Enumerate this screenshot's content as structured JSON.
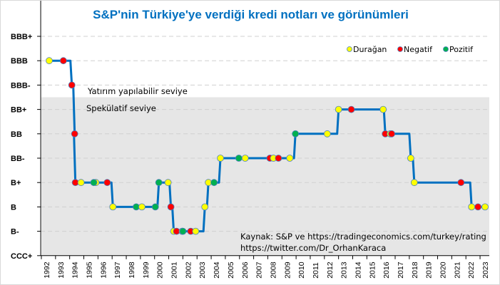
{
  "chart_data": {
    "type": "line",
    "title": "S&P'nin Türkiye'ye verdiği kredi notları ve görünümleri",
    "ratings": [
      "CCC+",
      "B-",
      "B",
      "B+",
      "BB-",
      "BB",
      "BB+",
      "BBB-",
      "BBB",
      "BBB+"
    ],
    "x_ticks": [
      1992,
      1993,
      1994,
      1995,
      1996,
      1997,
      1998,
      1999,
      2000,
      2001,
      2002,
      2003,
      2004,
      2005,
      2006,
      2007,
      2008,
      2009,
      2010,
      2011,
      2012,
      2013,
      2014,
      2015,
      2016,
      2017,
      2018,
      2019,
      2020,
      2021,
      2022,
      2023
    ],
    "xlim": [
      1991.6,
      2023.3
    ],
    "grid": true,
    "legend": {
      "position": "top-right",
      "entries": [
        {
          "key": "Y",
          "label": "Durağan"
        },
        {
          "key": "N",
          "label": "Negatif"
        },
        {
          "key": "G",
          "label": "Pozitif"
        }
      ]
    },
    "colors": {
      "line": "#0070c0",
      "Y": "#ffff00",
      "N": "#ff0000",
      "G": "#00b050",
      "shade": "#e6e6e6"
    },
    "annotations": {
      "investment": "Yatırım yapılabilir seviye",
      "speculative": "Spekülatif seviye",
      "source": "Kaynak: S&P ve https://tradingeconomics.com/turkey/rating",
      "twitter": "https://twitter.com/Dr_OrhanKaraca"
    },
    "points": [
      {
        "year": 1992.2,
        "rating": "BBB",
        "outlook": "Y"
      },
      {
        "year": 1993.2,
        "rating": "BBB",
        "outlook": "N"
      },
      {
        "year": 1993.8,
        "rating": "BBB-",
        "outlook": "N"
      },
      {
        "year": 1994.0,
        "rating": "BB",
        "outlook": "N"
      },
      {
        "year": 1994.05,
        "rating": "B+",
        "outlook": "N"
      },
      {
        "year": 1994.45,
        "rating": "B+",
        "outlook": "Y"
      },
      {
        "year": 1995.5,
        "rating": "B+",
        "outlook": "Y"
      },
      {
        "year": 1995.35,
        "rating": "B+",
        "outlook": "G"
      },
      {
        "year": 1996.3,
        "rating": "B+",
        "outlook": "N"
      },
      {
        "year": 1996.7,
        "rating": "B",
        "outlook": "Y"
      },
      {
        "year": 1998.35,
        "rating": "B",
        "outlook": "G"
      },
      {
        "year": 1998.75,
        "rating": "B",
        "outlook": "Y"
      },
      {
        "year": 1999.7,
        "rating": "B",
        "outlook": "G"
      },
      {
        "year": 1999.95,
        "rating": "B+",
        "outlook": "G"
      },
      {
        "year": 2000.6,
        "rating": "B+",
        "outlook": "Y"
      },
      {
        "year": 2000.8,
        "rating": "B",
        "outlook": "N"
      },
      {
        "year": 2001.0,
        "rating": "B-",
        "outlook": "Y"
      },
      {
        "year": 2001.2,
        "rating": "B-",
        "outlook": "N"
      },
      {
        "year": 2001.6,
        "rating": "B-",
        "outlook": "Y"
      },
      {
        "year": 2001.65,
        "rating": "B-",
        "outlook": "G"
      },
      {
        "year": 2002.2,
        "rating": "B-",
        "outlook": "N"
      },
      {
        "year": 2002.55,
        "rating": "B-",
        "outlook": "Y"
      },
      {
        "year": 2003.2,
        "rating": "B",
        "outlook": "Y"
      },
      {
        "year": 2003.45,
        "rating": "B+",
        "outlook": "Y"
      },
      {
        "year": 2003.85,
        "rating": "B+",
        "outlook": "G"
      },
      {
        "year": 2004.3,
        "rating": "BB-",
        "outlook": "Y"
      },
      {
        "year": 2005.6,
        "rating": "BB-",
        "outlook": "G"
      },
      {
        "year": 2006.05,
        "rating": "BB-",
        "outlook": "Y"
      },
      {
        "year": 2007.8,
        "rating": "BB-",
        "outlook": "N"
      },
      {
        "year": 2008.05,
        "rating": "BB-",
        "outlook": "Y"
      },
      {
        "year": 2008.4,
        "rating": "BB-",
        "outlook": "N"
      },
      {
        "year": 2009.2,
        "rating": "BB-",
        "outlook": "Y"
      },
      {
        "year": 2009.6,
        "rating": "BB",
        "outlook": "G"
      },
      {
        "year": 2011.85,
        "rating": "BB",
        "outlook": "Y"
      },
      {
        "year": 2012.65,
        "rating": "BB+",
        "outlook": "Y"
      },
      {
        "year": 2013.55,
        "rating": "BB+",
        "outlook": "N"
      },
      {
        "year": 2015.8,
        "rating": "BB+",
        "outlook": "Y"
      },
      {
        "year": 2015.95,
        "rating": "BB",
        "outlook": "N"
      },
      {
        "year": 2016.3,
        "rating": "BB",
        "outlook": "Y"
      },
      {
        "year": 2016.4,
        "rating": "BB",
        "outlook": "N"
      },
      {
        "year": 2017.75,
        "rating": "BB-",
        "outlook": "Y"
      },
      {
        "year": 2018.0,
        "rating": "B+",
        "outlook": "Y"
      },
      {
        "year": 2021.3,
        "rating": "B+",
        "outlook": "N"
      },
      {
        "year": 2022.05,
        "rating": "B",
        "outlook": "Y"
      },
      {
        "year": 2022.5,
        "rating": "B",
        "outlook": "N"
      },
      {
        "year": 2023.0,
        "rating": "B",
        "outlook": "Y"
      }
    ]
  }
}
